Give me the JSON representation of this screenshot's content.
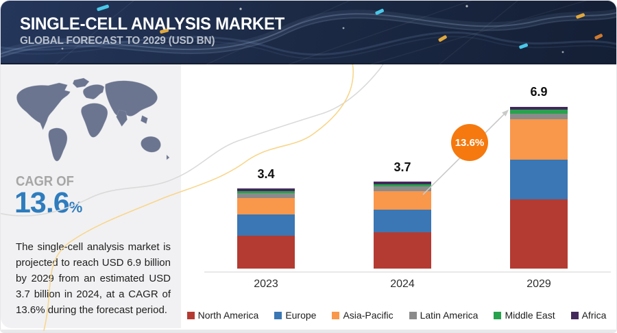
{
  "header": {
    "title": "SINGLE-CELL ANALYSIS MARKET",
    "subtitle": "GLOBAL FORECAST TO 2029 (USD BN)"
  },
  "sidebar": {
    "cagr_label": "CAGR OF",
    "cagr_value": "13.6",
    "cagr_unit": "%",
    "description": "The single-cell analysis market is projected to reach USD 6.9 billion by 2029 from an estimated USD 3.7 billion in 2024, at a CAGR of 13.6% during the forecast period."
  },
  "growth_badge": {
    "label": "13.6%",
    "color": "#f5790e"
  },
  "chart_data": {
    "type": "bar",
    "stacked": true,
    "title": "SINGLE-CELL ANALYSIS MARKET",
    "subtitle": "GLOBAL FORECAST TO 2029 (USD BN)",
    "unit": "USD BN",
    "categories": [
      "2023",
      "2024",
      "2029"
    ],
    "totals": [
      3.4,
      3.7,
      6.9
    ],
    "total_labels": [
      "3.4",
      "3.7",
      "6.9"
    ],
    "ylim": [
      0,
      7.5
    ],
    "grid": false,
    "legend_position": "bottom",
    "series": [
      {
        "name": "North America",
        "color": "#b43b32",
        "values": [
          1.4,
          1.55,
          2.95
        ]
      },
      {
        "name": "Europe",
        "color": "#3a77b4",
        "values": [
          0.9,
          0.95,
          1.7
        ]
      },
      {
        "name": "Asia-Pacific",
        "color": "#f9974b",
        "values": [
          0.7,
          0.8,
          1.7
        ]
      },
      {
        "name": "Latin America",
        "color": "#8b8b8b",
        "values": [
          0.2,
          0.21,
          0.25
        ]
      },
      {
        "name": "Middle East",
        "color": "#27a24d",
        "values": [
          0.1,
          0.09,
          0.17
        ]
      },
      {
        "name": "Africa",
        "color": "#43295b",
        "values": [
          0.1,
          0.1,
          0.12
        ]
      }
    ]
  },
  "colors": {
    "cagr_blue": "#2e7cbe",
    "axis": "#e8e8e8",
    "arrow": "#c9c9c9",
    "panel_bg": "#f1f1f3",
    "header_bg": "#1c2a46",
    "map": "#6b7590"
  }
}
